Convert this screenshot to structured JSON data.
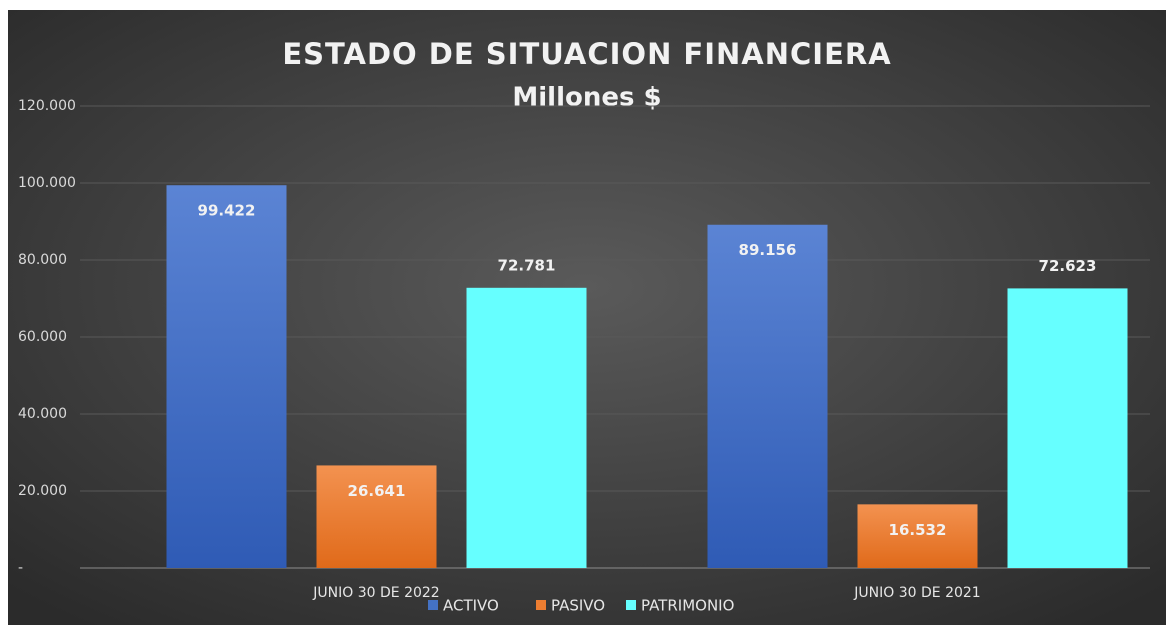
{
  "chart_data": {
    "type": "bar",
    "title": "ESTADO DE SITUACION FINANCIERA",
    "subtitle": "Millones $",
    "categories": [
      "JUNIO 30 DE 2022",
      "JUNIO 30 DE 2021"
    ],
    "series": [
      {
        "name": "ACTIVO",
        "color": "#4472c4",
        "values": [
          99422,
          89156
        ],
        "value_labels": [
          "99.422",
          "89.156"
        ]
      },
      {
        "name": "PASIVO",
        "color": "#ed7d31",
        "values": [
          26641,
          16532
        ],
        "value_labels": [
          "26.641",
          "16.532"
        ]
      },
      {
        "name": "PATRIMONIO",
        "color": "#66ffff",
        "values": [
          72781,
          72623
        ],
        "value_labels": [
          "72.781",
          "72.623"
        ]
      }
    ],
    "ylim": [
      0,
      120000
    ],
    "yticks": [
      {
        "value": 0,
        "label": "-"
      },
      {
        "value": 20000,
        "label": "20.000"
      },
      {
        "value": 40000,
        "label": "40.000"
      },
      {
        "value": 60000,
        "label": "60.000"
      },
      {
        "value": 80000,
        "label": "80.000"
      },
      {
        "value": 100000,
        "label": "100.000"
      },
      {
        "value": 120000,
        "label": "120.000"
      }
    ],
    "grid": true,
    "legend": "bottom"
  }
}
